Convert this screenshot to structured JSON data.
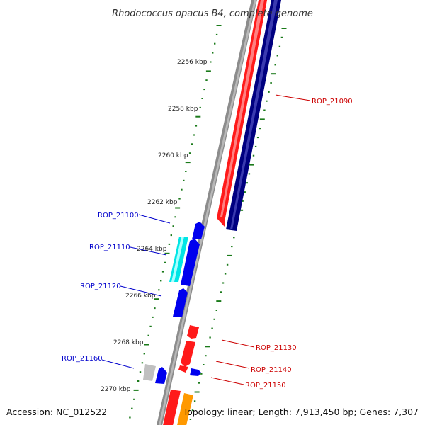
{
  "title": "Rhodococcus opacus B4, complete genome",
  "footer": {
    "accession": "Accession: NC_012522",
    "summary": "Topology: linear; Length: 7,913,450 bp; Genes: 7,307"
  },
  "kbp_labels": [
    "2256 kbp",
    "2258 kbp",
    "2260 kbp",
    "2262 kbp",
    "2264 kbp",
    "2266 kbp",
    "2268 kbp",
    "2270 kbp"
  ],
  "gene_labels": {
    "rop_21090": "ROP_21090",
    "rop_21100": "ROP_21100",
    "rop_21110": "ROP_21110",
    "rop_21120": "ROP_21120",
    "rop_21130": "ROP_21130",
    "rop_21140": "ROP_21140",
    "rop_21150": "ROP_21150",
    "rop_21160": "ROP_21160"
  },
  "colors": {
    "forward_label": "#0000cc",
    "reverse_label": "#cc0000",
    "ticks": "#1a7a1a",
    "backbone": "#888888",
    "gene_red": "#ff1a1a",
    "gene_navy": "#000080",
    "gene_blue": "#0000ee",
    "gene_cyan": "#00e5e5",
    "gene_gray": "#c0c0c0",
    "gene_orange": "#ff9900"
  }
}
